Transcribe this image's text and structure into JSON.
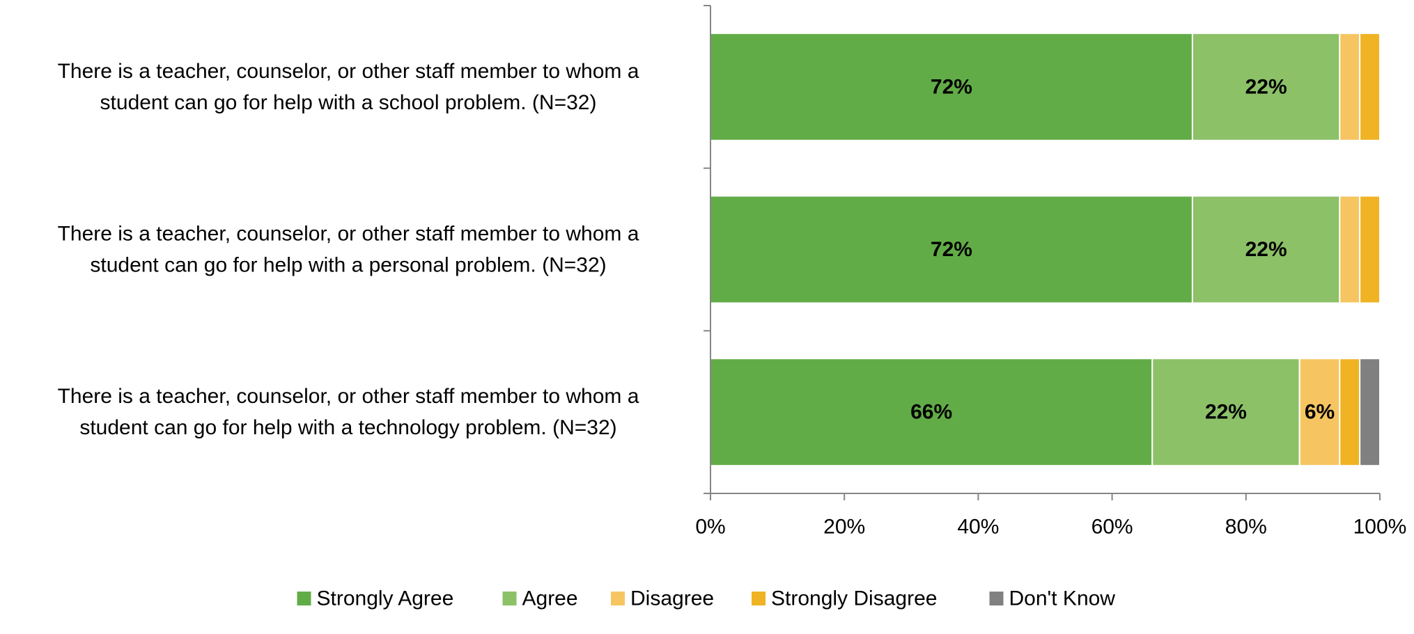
{
  "chart_data": {
    "type": "bar",
    "orientation": "horizontal",
    "stacked": true,
    "categories": [
      [
        "There is a teacher, counselor, or other staff member to whom a",
        "student can go for help with a school problem. (N=32)"
      ],
      [
        "There is a teacher, counselor, or other staff member to whom a",
        "student can go for help with a personal problem. (N=32)"
      ],
      [
        "There is a teacher, counselor, or other staff member to whom a",
        "student can go for help with a technology problem. (N=32)"
      ]
    ],
    "series": [
      {
        "name": "Strongly Agree",
        "color": "#62AC47",
        "values": [
          72,
          72,
          66
        ],
        "labels": [
          "72%",
          "72%",
          "66%"
        ]
      },
      {
        "name": "Agree",
        "color": "#8CC168",
        "values": [
          22,
          22,
          22
        ],
        "labels": [
          "22%",
          "22%",
          "22%"
        ]
      },
      {
        "name": "Disagree",
        "color": "#F6C561",
        "values": [
          3,
          3,
          6
        ],
        "labels": [
          "",
          "",
          "6%"
        ]
      },
      {
        "name": "Strongly Disagree",
        "color": "#F0B323",
        "values": [
          3,
          3,
          3
        ],
        "labels": [
          "",
          "",
          ""
        ]
      },
      {
        "name": "Don't Know",
        "color": "#808080",
        "values": [
          0,
          0,
          3
        ],
        "labels": [
          "",
          "",
          ""
        ]
      }
    ],
    "xlim": [
      0,
      100
    ],
    "xticks": [
      "0%",
      "20%",
      "40%",
      "60%",
      "80%",
      "100%"
    ],
    "grid": false,
    "legend": "bottom",
    "title": "",
    "xlabel": "",
    "ylabel": ""
  }
}
